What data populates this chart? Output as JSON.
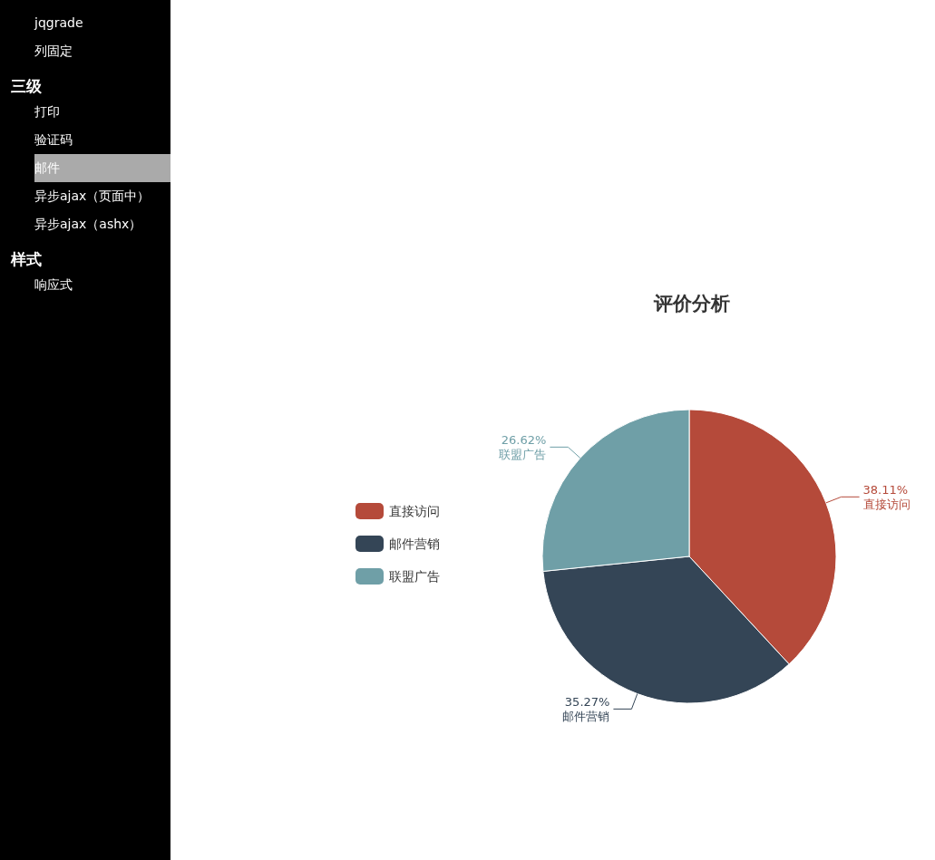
{
  "chart_data": {
    "type": "pie",
    "title": "评价分析",
    "categories": [
      "直接访问",
      "邮件营销",
      "联盟广告"
    ],
    "values": [
      38.11,
      35.27,
      26.62
    ],
    "colors": [
      "#b54a3a",
      "#344556",
      "#6f9fa7"
    ],
    "value_labels": [
      "38.11%",
      "35.27%",
      "26.62%"
    ],
    "legend": "left",
    "annotations": [
      "jqgrade",
      "列固定",
      "三级",
      "打印",
      "验证码",
      "邮件",
      "异步ajax（页面中）",
      "异步ajax（ashx）",
      "样式",
      "响应式"
    ]
  }
}
